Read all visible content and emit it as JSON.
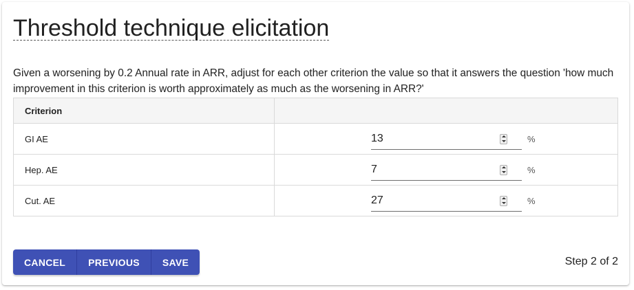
{
  "title": "Threshold technique elicitation",
  "instructions": "Given a worsening by 0.2 Annual rate in ARR, adjust for each other criterion the value so that it answers the question 'how much improvement in this criterion is worth approximately as much as the worsening in ARR?'",
  "table": {
    "header": {
      "criterion": "Criterion",
      "value": ""
    },
    "rows": [
      {
        "criterion": "GI AE",
        "value": "13",
        "unit": "%"
      },
      {
        "criterion": "Hep. AE",
        "value": "7",
        "unit": "%"
      },
      {
        "criterion": "Cut. AE",
        "value": "27",
        "unit": "%"
      }
    ]
  },
  "buttons": {
    "cancel": "CANCEL",
    "previous": "PREVIOUS",
    "save": "SAVE"
  },
  "step": "Step 2 of 2",
  "colors": {
    "primary": "#3f51b5",
    "text": "#212121",
    "header_bg": "#f5f5f5",
    "border": "#d9d9d9"
  },
  "icons": {
    "spinner": "number-spinner-icon"
  }
}
